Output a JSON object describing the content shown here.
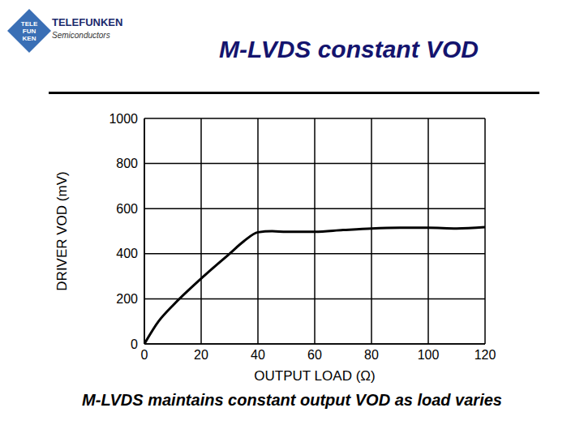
{
  "chart_data": {
    "type": "line",
    "title": "M-LVDS constant VOD",
    "x_label": "OUTPUT LOAD (Ω)",
    "y_label": "DRIVER VOD (mV)",
    "x": [
      0,
      5,
      10,
      20,
      30,
      35,
      40,
      45,
      50,
      60,
      70,
      80,
      90,
      100,
      110,
      120
    ],
    "values": [
      0,
      100,
      170,
      290,
      400,
      455,
      495,
      500,
      497,
      497,
      505,
      512,
      515,
      515,
      512,
      518
    ],
    "color": "#000000",
    "xlim": [
      0,
      120
    ],
    "xticks": [
      0,
      20,
      40,
      60,
      80,
      100,
      120
    ],
    "ylim": [
      0,
      1000
    ],
    "yticks": [
      0,
      200,
      400,
      600,
      800,
      1000
    ],
    "grid": true
  },
  "slide": {
    "caption": "M-LVDS maintains constant output VOD as load varies",
    "logo": {
      "name": "TELEFUNKEN",
      "subtitle": "Semiconductors",
      "mark": [
        "TELE",
        "FUN",
        "KEN"
      ]
    }
  }
}
